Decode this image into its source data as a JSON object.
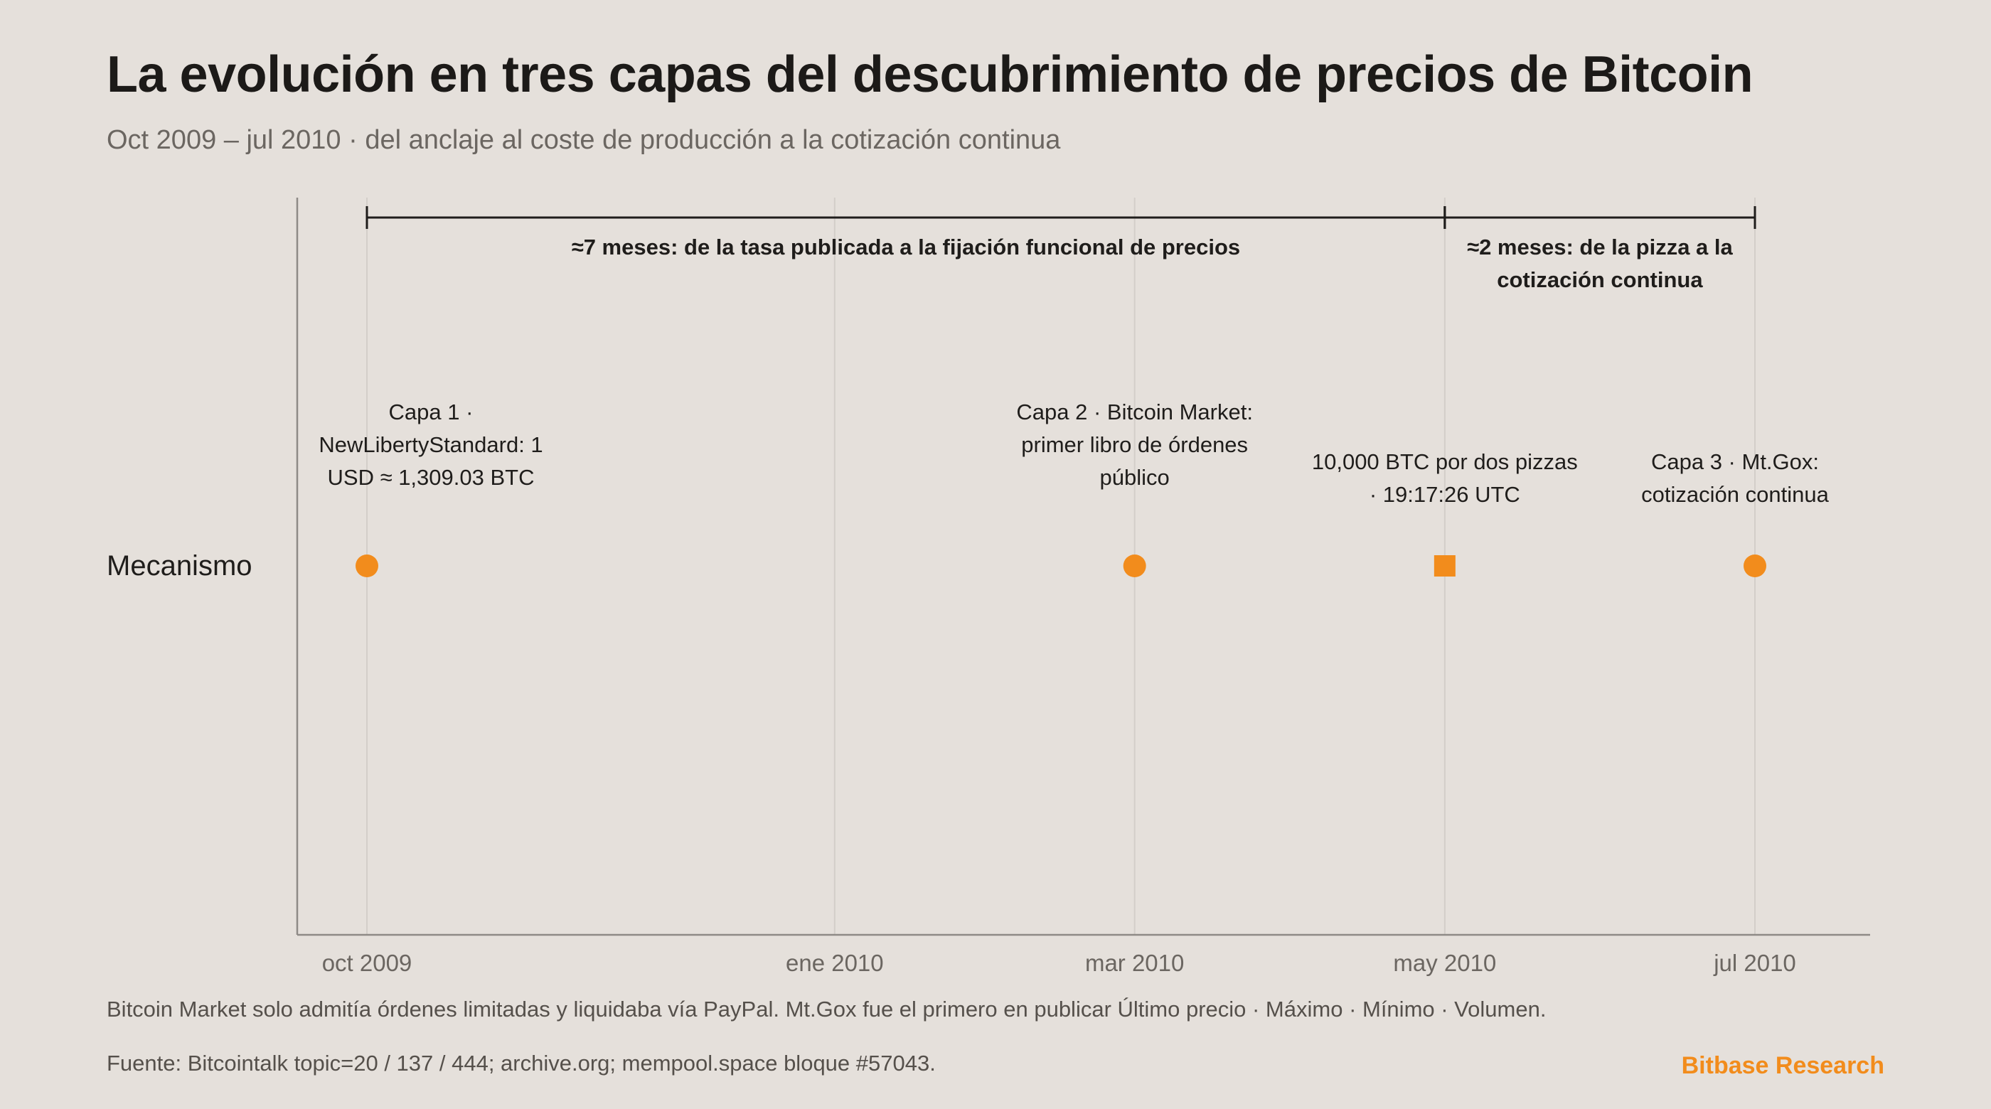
{
  "title": "La evolución en tres capas del descubrimiento de precios de Bitcoin",
  "subtitle": "Oct 2009 – jul 2010 · del anclaje al coste de producción a la cotización continua",
  "note": "Bitcoin Market solo admitía órdenes limitadas y liquidaba vía PayPal. Mt.Gox fue el primero en publicar Último precio · Máximo · Mínimo · Volumen.",
  "source": "Fuente: Bitcointalk topic=20 / 137 / 444; archive.org; mempool.space bloque #57043.",
  "brand": "Bitbase Research",
  "colors": {
    "background": "#e5e0db",
    "accent": "#f28c1c",
    "text": "#1f1d1b",
    "muted": "#6b6661",
    "grid": "#d3cec9",
    "axis": "#8e8a86"
  },
  "chart_data": {
    "type": "scatter",
    "x_axis": {
      "type": "date",
      "range": [
        "2009-09-15",
        "2010-08-15"
      ],
      "ticks": [
        {
          "date": "2009-10-01",
          "label": "oct 2009"
        },
        {
          "date": "2010-01-01",
          "label": "ene 2010"
        },
        {
          "date": "2010-03-01",
          "label": "mar 2010"
        },
        {
          "date": "2010-05-01",
          "label": "may 2010"
        },
        {
          "date": "2010-07-01",
          "label": "jul 2010"
        }
      ],
      "grid": true
    },
    "y_axis": {
      "categories": [
        "Mecanismo"
      ]
    },
    "events": [
      {
        "date": "2009-10-01",
        "category": "Mecanismo",
        "marker": "circle",
        "label": [
          "Capa 1 ·",
          "NewLibertyStandard: 1",
          "USD ≈ 1,309.03 BTC"
        ],
        "label_level": "high"
      },
      {
        "date": "2010-03-01",
        "category": "Mecanismo",
        "marker": "circle",
        "label": [
          "Capa 2 · Bitcoin Market:",
          "primer libro de órdenes",
          "público"
        ],
        "label_level": "high"
      },
      {
        "date": "2010-05-01",
        "category": "Mecanismo",
        "marker": "square",
        "label": [
          "10,000 BTC por dos pizzas",
          "· 19:17:26 UTC"
        ],
        "label_level": "low"
      },
      {
        "date": "2010-07-01",
        "category": "Mecanismo",
        "marker": "circle",
        "label": [
          "Capa 3 · Mt.Gox:",
          "cotización continua"
        ],
        "label_level": "low"
      }
    ],
    "spans": [
      {
        "start": "2009-10-01",
        "end": "2010-05-01",
        "label": [
          "≈7 meses: de la tasa publicada a la fijación funcional de precios"
        ]
      },
      {
        "start": "2010-05-01",
        "end": "2010-07-01",
        "label": [
          "≈2 meses: de la pizza a la",
          "cotización continua"
        ]
      }
    ]
  }
}
